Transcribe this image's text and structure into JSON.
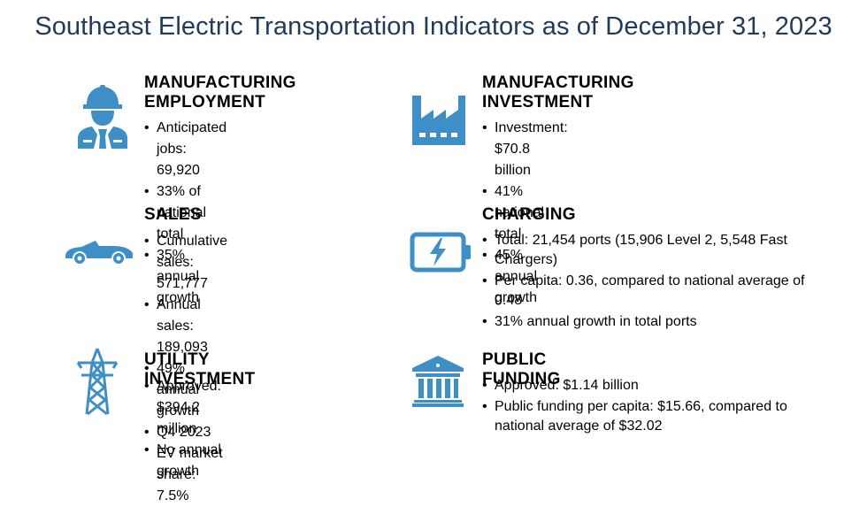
{
  "title": "Southeast Electric Transportation Indicators as of December 31, 2023",
  "colors": {
    "icon": "#3d8fc6",
    "title": "#1f3a5a"
  },
  "cards": {
    "mfg_employment": {
      "icon": "worker-icon",
      "heading_line1": "MANUFACTURING",
      "heading_line2": "EMPLOYMENT",
      "bullets": [
        "Anticipated jobs: 69,920",
        "33% of national total",
        "35% annual growth"
      ]
    },
    "mfg_investment": {
      "icon": "factory-icon",
      "heading_line1": "MANUFACTURING",
      "heading_line2": "INVESTMENT",
      "bullets": [
        "Investment: $70.8 billion",
        "41% national total",
        "45% annual growth"
      ]
    },
    "sales": {
      "icon": "car-icon",
      "heading": "SALES",
      "bullets": [
        "Cumulative sales: 571,777",
        "Annual sales: 189,093",
        "49% annual growth",
        "Q4 2023 EV market share: 7.5%"
      ]
    },
    "charging": {
      "icon": "battery-charging-icon",
      "heading": "CHARGING",
      "bullets": [
        "Total: 21,454 ports (15,906 Level 2, 5,548 Fast Chargers)",
        "Per capita: 0.36, compared to national average of 0.48",
        "31% annual growth in total ports"
      ]
    },
    "utility": {
      "icon": "power-tower-icon",
      "heading": "UTILITY INVESTMENT",
      "bullets": [
        "Approved: $394.2 million",
        "No annual growth"
      ]
    },
    "public_funding": {
      "icon": "government-building-icon",
      "heading": "PUBLIC FUNDING",
      "bullets": [
        "Approved: $1.14 billion",
        "Public funding per capita: $15.66, compared to national average of $32.02"
      ]
    }
  }
}
